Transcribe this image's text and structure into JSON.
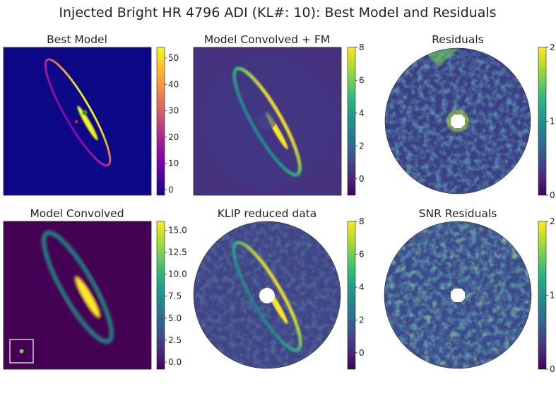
{
  "figure": {
    "title": "Injected Bright HR 4796 ADI (KL#: 10): Best Model and Residuals"
  },
  "colors": {
    "viridis": [
      "#440154",
      "#482878",
      "#3e4989",
      "#31688e",
      "#26828e",
      "#1f9e89",
      "#35b779",
      "#6ece58",
      "#b5de2b",
      "#fde725"
    ],
    "magma": [
      "#000004",
      "#1c1044",
      "#4f127b",
      "#812581",
      "#b5367a",
      "#e55064",
      "#fb8761",
      "#fec287",
      "#fcfdbf"
    ],
    "plasma": [
      "#0d0887",
      "#5402a3",
      "#8b0aa5",
      "#b83289",
      "#db5c68",
      "#f48849",
      "#febd2a",
      "#f0f921"
    ],
    "marker_star": "#cc2222",
    "marker_point": "#3d8c3d",
    "mask": "#ffffff"
  },
  "chart_data": [
    {
      "type": "heatmap",
      "title": "Best Model",
      "colormap": "plasma",
      "clim": [
        -2,
        54
      ],
      "colorbar_ticks": [
        0,
        10,
        20,
        30,
        40,
        50
      ],
      "colorbar_tick_labels": [
        "0",
        "10",
        "20",
        "30",
        "40",
        "50"
      ],
      "content": "disk ring model",
      "markers": [
        "star center",
        "disk center"
      ]
    },
    {
      "type": "heatmap",
      "title": "Model Convolved + FM",
      "colormap": "viridis",
      "clim": [
        -1,
        8
      ],
      "colorbar_ticks": [
        0,
        2,
        4,
        6,
        8
      ],
      "colorbar_tick_labels": [
        "0",
        "2",
        "4",
        "6",
        "8"
      ],
      "content": "forward-modelled disk"
    },
    {
      "type": "heatmap",
      "title": "Residuals",
      "colormap": "viridis",
      "clim": [
        0,
        2
      ],
      "colorbar_ticks": [
        0,
        1,
        2
      ],
      "colorbar_tick_labels": [
        "0",
        "1",
        "2"
      ],
      "content": "residual noise map"
    },
    {
      "type": "heatmap",
      "title": "Model Convolved",
      "colormap": "viridis",
      "clim": [
        -0.8,
        16
      ],
      "colorbar_ticks": [
        0.0,
        2.5,
        5.0,
        7.5,
        10.0,
        12.5,
        15.0
      ],
      "colorbar_tick_labels": [
        "0.0",
        "2.5",
        "5.0",
        "7.5",
        "10.0",
        "12.5",
        "15.0"
      ],
      "content": "convolved disk model with PSF inset"
    },
    {
      "type": "heatmap",
      "title": "KLIP reduced data",
      "colormap": "viridis",
      "clim": [
        -1,
        8
      ],
      "colorbar_ticks": [
        0,
        2,
        4,
        6,
        8
      ],
      "colorbar_tick_labels": [
        "0",
        "2",
        "4",
        "6",
        "8"
      ],
      "content": "KLIP reduced image"
    },
    {
      "type": "heatmap",
      "title": "SNR Residuals",
      "colormap": "viridis",
      "clim": [
        0,
        2
      ],
      "colorbar_ticks": [
        0,
        1,
        2
      ],
      "colorbar_tick_labels": [
        "0",
        "1",
        "2"
      ],
      "content": "SNR residual map"
    }
  ]
}
